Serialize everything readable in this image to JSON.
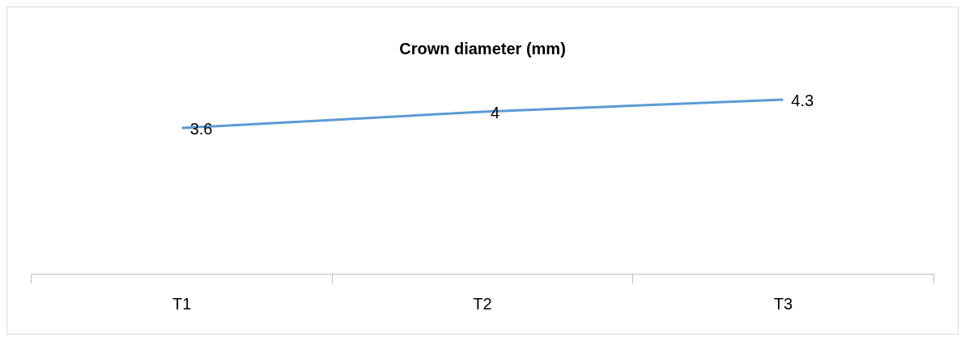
{
  "chart_data": {
    "type": "line",
    "title": "Crown diameter (mm)",
    "categories": [
      "T1",
      "T2",
      "T3"
    ],
    "series": [
      {
        "color": "#5b9bd5",
        "values": [
          3.6,
          4,
          4.3
        ]
      }
    ],
    "data_labels": true,
    "grid": false,
    "legend": false,
    "marker": "none",
    "line_style": "solid",
    "tick_labels": "x"
  }
}
